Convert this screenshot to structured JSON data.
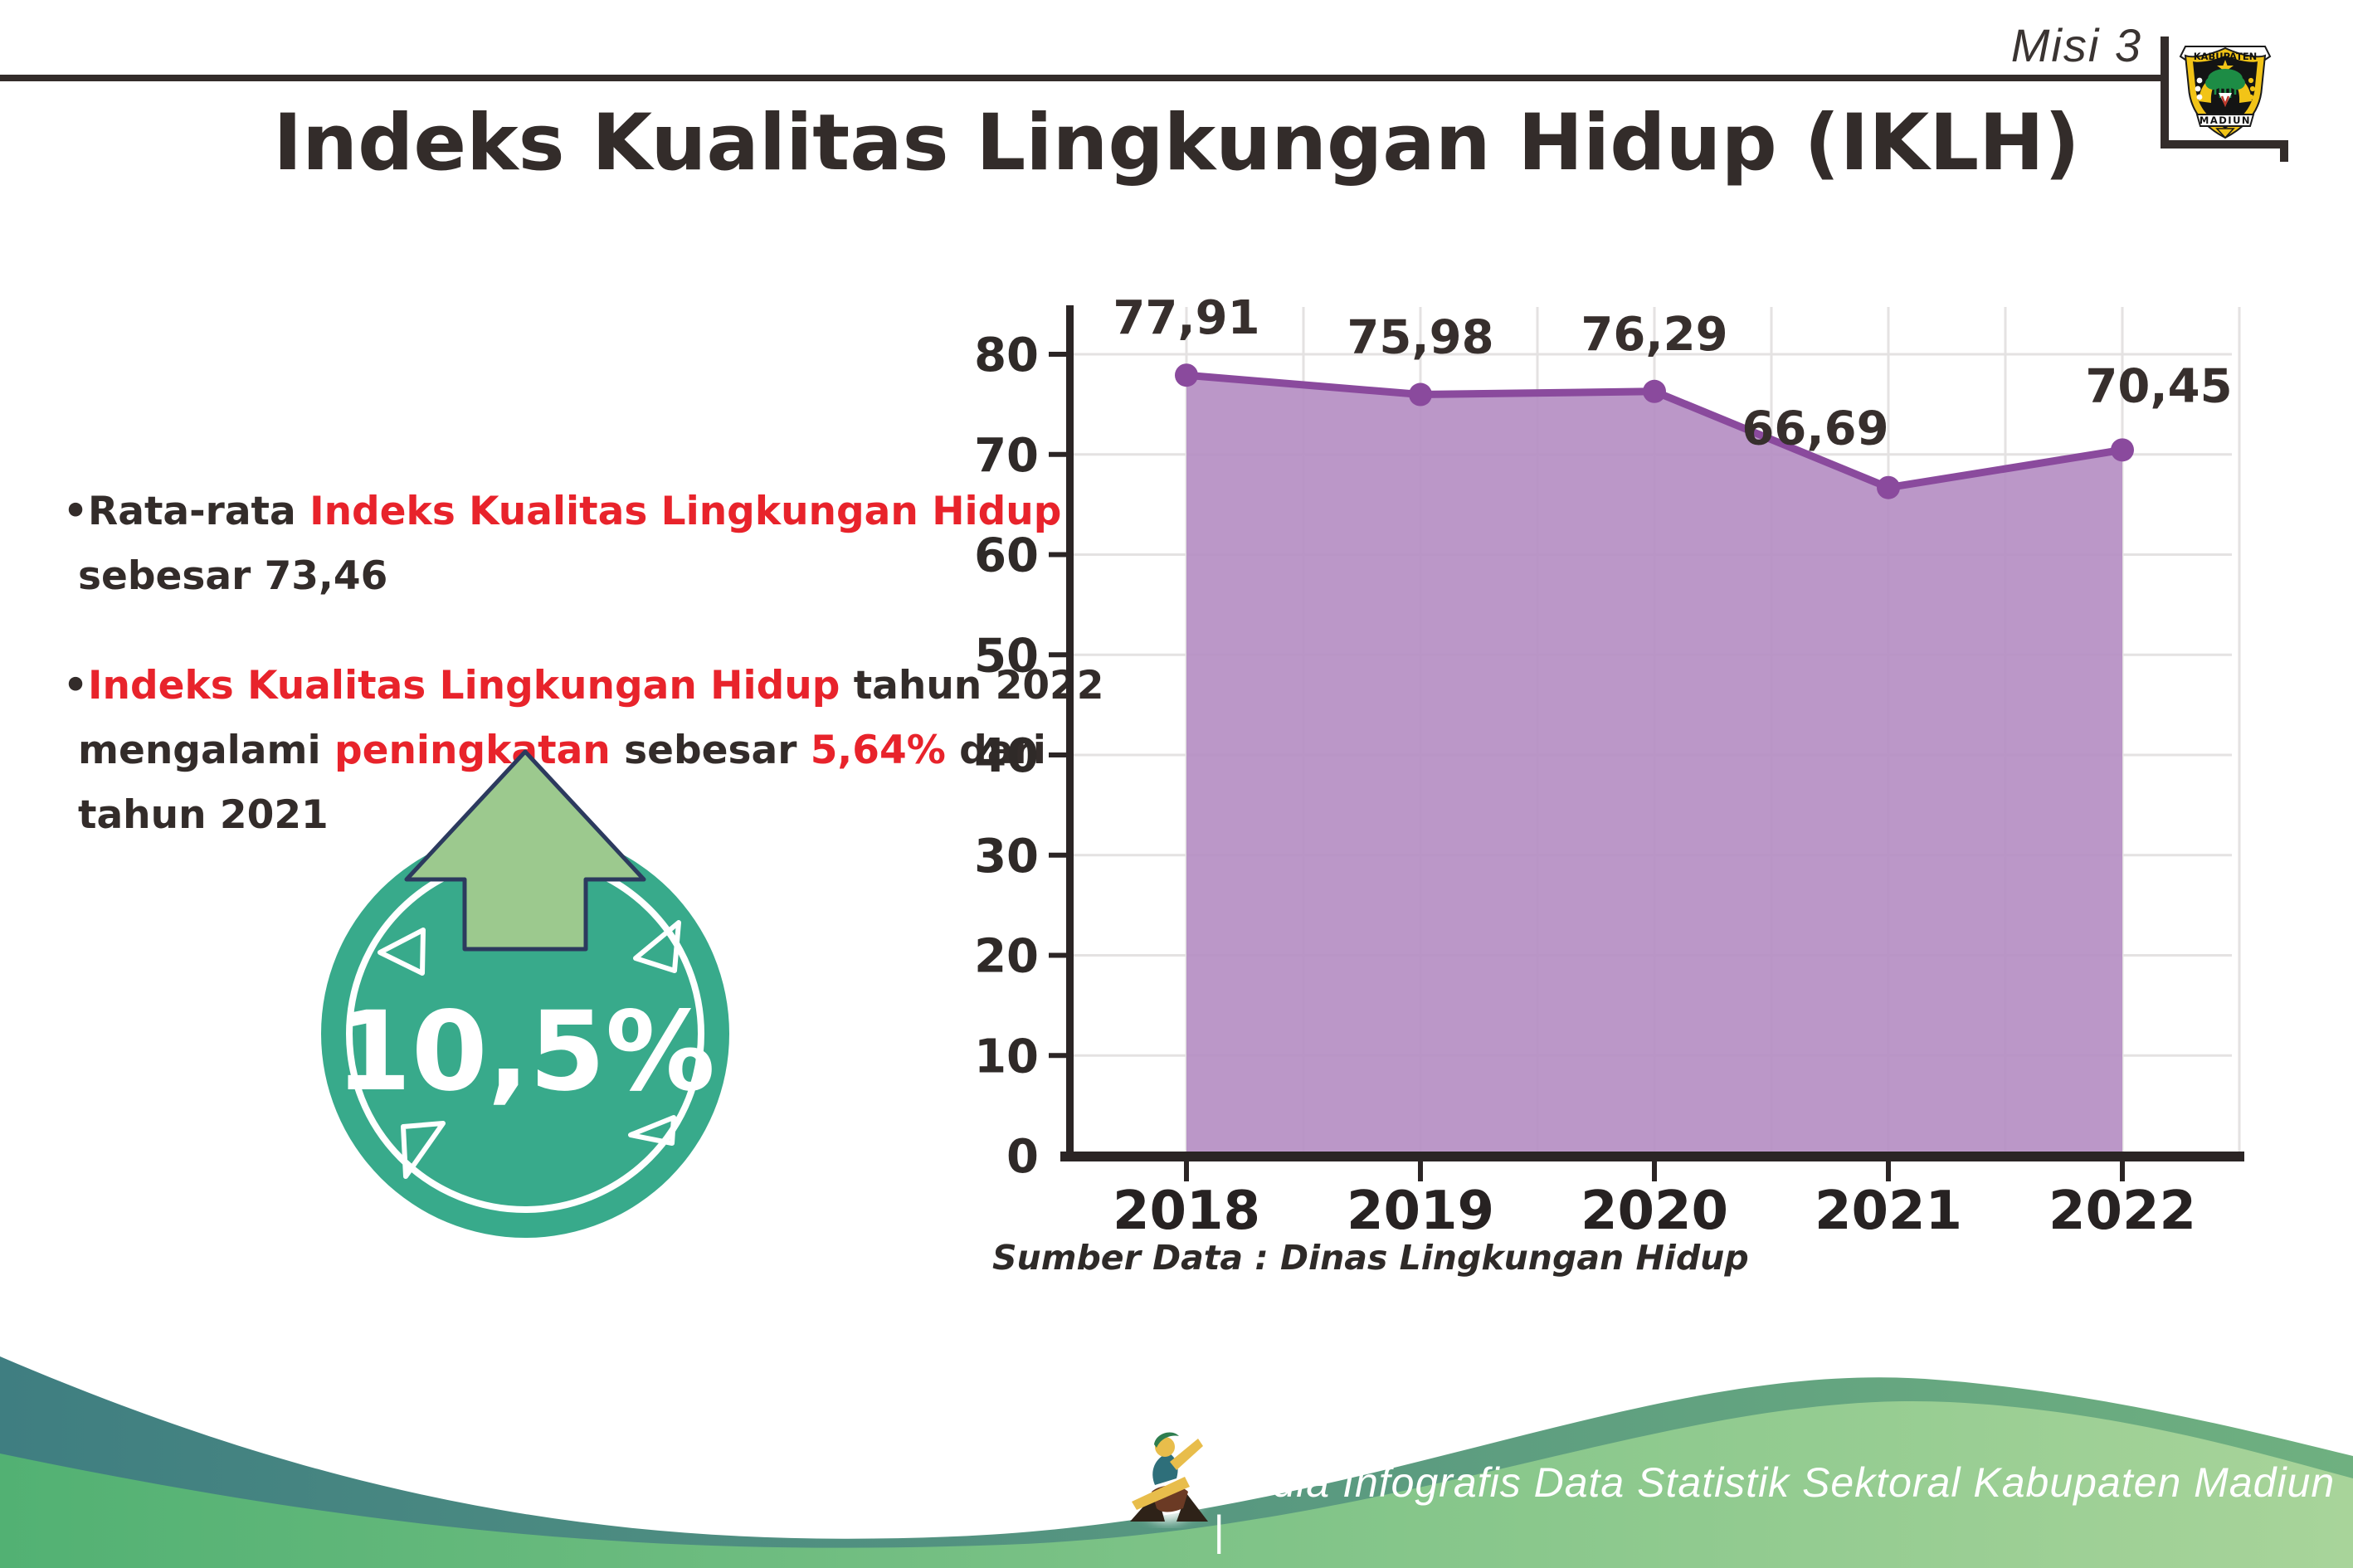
{
  "header": {
    "misi_label": "Misi 3"
  },
  "logo": {
    "name": "kabupaten-madiun-seal",
    "top_text": "KABUPATEN",
    "bottom_text": "MADIUN"
  },
  "title": "Indeks Kualitas Lingkungan Hidup (IKLH)",
  "bullets": {
    "bullet_char": "•",
    "items": [
      {
        "lines": [
          [
            {
              "t": "Rata-rata ",
              "red": false
            },
            {
              "t": "Indeks Kualitas Lingkungan Hidup",
              "red": true
            }
          ],
          [
            {
              "t": "sebesar 73,46",
              "red": false
            }
          ]
        ]
      },
      {
        "lines": [
          [
            {
              "t": "Indeks Kualitas Lingkungan Hidup",
              "red": true
            },
            {
              "t": " tahun 2022",
              "red": false
            }
          ],
          [
            {
              "t": "mengalami ",
              "red": false
            },
            {
              "t": "peningkatan",
              "red": true
            },
            {
              "t": " sebesar ",
              "red": false
            },
            {
              "t": "5,64%",
              "red": true
            },
            {
              "t": " dari",
              "red": false
            }
          ],
          [
            {
              "t": "tahun 2021",
              "red": false
            }
          ]
        ]
      }
    ]
  },
  "badge": {
    "value": "10,5%"
  },
  "chart_data": {
    "type": "area",
    "title": "",
    "categories": [
      "2018",
      "2019",
      "2020",
      "2021",
      "2022"
    ],
    "values": [
      77.91,
      75.98,
      76.29,
      66.69,
      70.45
    ],
    "value_labels": [
      "77,91",
      "75,98",
      "76,29",
      "66,69",
      "70,45"
    ],
    "xlabel": "",
    "ylabel": "",
    "ylim": [
      0,
      80
    ],
    "ytick_step": 10,
    "grid": true,
    "legend": "none",
    "area_color": "#b58ec3",
    "line_color": "#8a4a9d",
    "source_label": "Sumber Data : Dinas Lingkungan Hidup"
  },
  "footer": {
    "caption": "Media Infografis Data Statistik Sektoral Kabupaten Madiun |"
  },
  "colors": {
    "accent_red": "#e8232b",
    "text_dark": "#332c2a",
    "badge_teal": "#38aa8b",
    "arrow_green": "#9cc98e",
    "arrow_outline": "#2c3a5e",
    "footer_teal": "#3f7e81",
    "footer_green": "#57b375",
    "footer_green_light": "#a8d49a",
    "purple_area": "#b58ec3",
    "purple_line": "#8a4a9d"
  }
}
